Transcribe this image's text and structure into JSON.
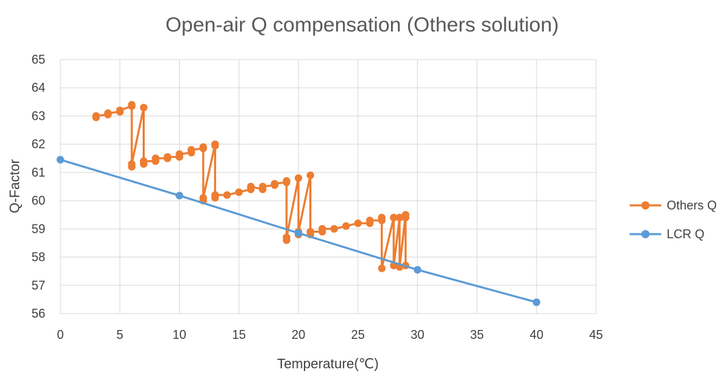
{
  "chart_data": {
    "type": "line",
    "title": "Open-air Q compensation (Others solution)",
    "xlabel": "Temperature(℃)",
    "ylabel": "Q-Factor",
    "xlim": [
      0,
      45
    ],
    "ylim": [
      56,
      65
    ],
    "xticks": [
      "0",
      "5",
      "10",
      "15",
      "20",
      "25",
      "30",
      "35",
      "40",
      "45"
    ],
    "yticks": [
      "56",
      "57",
      "58",
      "59",
      "60",
      "61",
      "62",
      "63",
      "64",
      "65"
    ],
    "grid": true,
    "legend_position": "right",
    "series": [
      {
        "name": "Others Q",
        "color": "#ed7d31",
        "points": [
          [
            3,
            62.95
          ],
          [
            3,
            63.0
          ],
          [
            4,
            63.05
          ],
          [
            4,
            63.1
          ],
          [
            5,
            63.15
          ],
          [
            5,
            63.2
          ],
          [
            6,
            63.35
          ],
          [
            6,
            63.4
          ],
          [
            6,
            61.2
          ],
          [
            6,
            61.3
          ],
          [
            7,
            63.3
          ],
          [
            7,
            61.3
          ],
          [
            7,
            61.4
          ],
          [
            8,
            61.4
          ],
          [
            8,
            61.5
          ],
          [
            9,
            61.5
          ],
          [
            9,
            61.55
          ],
          [
            10,
            61.55
          ],
          [
            10,
            61.65
          ],
          [
            11,
            61.7
          ],
          [
            11,
            61.8
          ],
          [
            12,
            61.85
          ],
          [
            12,
            61.9
          ],
          [
            12,
            60.0
          ],
          [
            12,
            60.1
          ],
          [
            13,
            62.0
          ],
          [
            13,
            61.95
          ],
          [
            13,
            60.1
          ],
          [
            13,
            60.2
          ],
          [
            14,
            60.2
          ],
          [
            15,
            60.3
          ],
          [
            16,
            60.4
          ],
          [
            16,
            60.5
          ],
          [
            17,
            60.4
          ],
          [
            17,
            60.5
          ],
          [
            18,
            60.55
          ],
          [
            18,
            60.6
          ],
          [
            19,
            60.65
          ],
          [
            19,
            60.7
          ],
          [
            19,
            58.6
          ],
          [
            19,
            58.7
          ],
          [
            20,
            60.8
          ],
          [
            20,
            58.8
          ],
          [
            20,
            58.9
          ],
          [
            21,
            60.9
          ],
          [
            21,
            58.8
          ],
          [
            21,
            58.9
          ],
          [
            22,
            58.9
          ],
          [
            22,
            59.0
          ],
          [
            23,
            59.0
          ],
          [
            24,
            59.1
          ],
          [
            25,
            59.2
          ],
          [
            26,
            59.2
          ],
          [
            26,
            59.3
          ],
          [
            27,
            59.3
          ],
          [
            27,
            59.4
          ],
          [
            27,
            57.6
          ],
          [
            28,
            59.4
          ],
          [
            28,
            57.7
          ],
          [
            28.5,
            59.4
          ],
          [
            28.5,
            57.65
          ],
          [
            29,
            59.5
          ],
          [
            29,
            59.4
          ],
          [
            29,
            57.7
          ]
        ]
      },
      {
        "name": "LCR Q",
        "color": "#5b9bd5",
        "points": [
          [
            0,
            61.45
          ],
          [
            10,
            60.18
          ],
          [
            20,
            58.85
          ],
          [
            30,
            57.55
          ],
          [
            40,
            56.4
          ]
        ]
      }
    ]
  }
}
